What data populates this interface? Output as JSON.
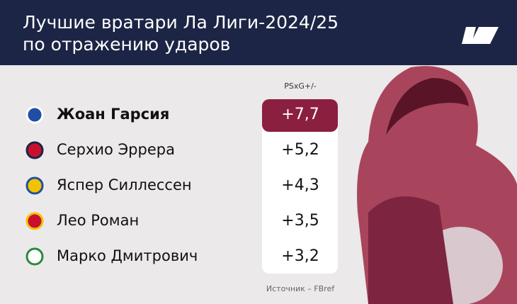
{
  "header": {
    "title_lines": [
      "Лучшие вратари Ла Лиги-2024/25",
      "по отражению ударов"
    ]
  },
  "table": {
    "column_header": "PSxG+/-",
    "rows": [
      {
        "name": "Жоан Гарсия",
        "value": "+7,7"
      },
      {
        "name": "Серхио Эррера",
        "value": "+5,2"
      },
      {
        "name": "Яспер Силлессен",
        "value": "+4,3"
      },
      {
        "name": "Лео Роман",
        "value": "+3,5"
      },
      {
        "name": "Марко Дмитрович",
        "value": "+3,2"
      }
    ]
  },
  "source": "Источник – FBref"
}
